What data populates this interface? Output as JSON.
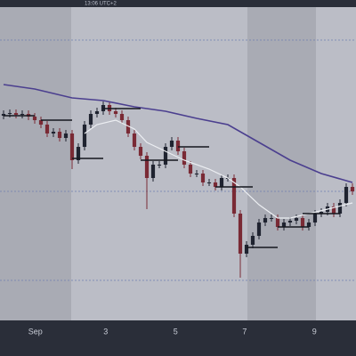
{
  "chart_data": {
    "type": "candlestick",
    "timestamp": "13:06 UTC+2",
    "xlim": [
      -0.571,
      56.571
    ],
    "ylim": [
      0,
      360
    ],
    "xticks": [
      {
        "value": 5.1,
        "label": "Sep"
      },
      {
        "value": 16.4,
        "label": "3"
      },
      {
        "value": 27.6,
        "label": "5"
      },
      {
        "value": 38.7,
        "label": "7"
      },
      {
        "value": 49.9,
        "label": "9"
      }
    ],
    "up_color": "#1f2330",
    "down_color": "#7a2a35",
    "candles": {
      "open": [
        230,
        232,
        233,
        231,
        232,
        229,
        225,
        220,
        210,
        212,
        205,
        210,
        180,
        195,
        220,
        232,
        235,
        242,
        235,
        232,
        225,
        210,
        195,
        185,
        160,
        175,
        175,
        195,
        202,
        190,
        175,
        165,
        165,
        155,
        155,
        150,
        160,
        160,
        120,
        75,
        85,
        95,
        110,
        115,
        115,
        105,
        110,
        112,
        115,
        105,
        110,
        120,
        122,
        128,
        120,
        132,
        150
      ],
      "high": [
        236,
        237,
        237,
        236,
        236,
        233,
        229,
        224,
        216,
        216,
        214,
        214,
        199,
        224,
        236,
        239,
        246,
        246,
        239,
        236,
        229,
        214,
        199,
        189,
        179,
        179,
        199,
        206,
        206,
        194,
        179,
        169,
        169,
        159,
        159,
        164,
        164,
        164,
        124,
        89,
        99,
        114,
        119,
        119,
        119,
        114,
        116,
        119,
        119,
        114,
        124,
        126,
        132,
        132,
        136,
        154,
        154
      ],
      "low": [
        226,
        228,
        227,
        227,
        225,
        221,
        216,
        206,
        206,
        201,
        201,
        170,
        176,
        191,
        216,
        228,
        231,
        231,
        228,
        221,
        206,
        191,
        181,
        125,
        156,
        171,
        171,
        191,
        186,
        171,
        161,
        161,
        151,
        151,
        146,
        146,
        156,
        116,
        48,
        71,
        81,
        91,
        106,
        111,
        101,
        101,
        106,
        108,
        101,
        101,
        106,
        116,
        118,
        116,
        116,
        128,
        141
      ],
      "close": [
        232,
        233,
        231,
        232,
        229,
        225,
        220,
        210,
        212,
        205,
        210,
        180,
        195,
        220,
        232,
        235,
        242,
        235,
        232,
        225,
        210,
        195,
        185,
        160,
        175,
        175,
        195,
        202,
        190,
        175,
        165,
        165,
        155,
        155,
        150,
        160,
        160,
        120,
        75,
        85,
        95,
        110,
        115,
        115,
        105,
        110,
        112,
        115,
        105,
        110,
        120,
        122,
        128,
        120,
        132,
        150,
        145
      ]
    },
    "lines": [
      {
        "color": "#4b3f8f",
        "x": [
          0,
          5,
          11,
          16,
          21,
          26,
          31,
          36,
          41,
          46,
          51,
          56
        ],
        "values": [
          265,
          260,
          250,
          247,
          240,
          235,
          227,
          220,
          200,
          180,
          165,
          155
        ]
      },
      {
        "color": "#eceef2",
        "x": [
          13,
          15,
          18,
          21,
          23,
          26,
          29,
          33,
          36,
          38,
          41,
          44,
          46,
          49,
          52,
          56
        ],
        "values": [
          210,
          220,
          225,
          215,
          200,
          190,
          180,
          170,
          160,
          150,
          130,
          115,
          115,
          120,
          125,
          132
        ]
      }
    ],
    "levels": [
      {
        "start": 0,
        "end": 5,
        "value": 230
      },
      {
        "start": 6,
        "end": 11,
        "value": 225
      },
      {
        "start": 11,
        "end": 16,
        "value": 182
      },
      {
        "start": 16,
        "end": 22,
        "value": 238
      },
      {
        "start": 22,
        "end": 28,
        "value": 180
      },
      {
        "start": 28,
        "end": 33,
        "value": 195
      },
      {
        "start": 34,
        "end": 40,
        "value": 150
      },
      {
        "start": 39,
        "end": 44,
        "value": 82
      },
      {
        "start": 44,
        "end": 49,
        "value": 105
      },
      {
        "start": 48,
        "end": 54,
        "value": 120
      }
    ],
    "hlines": [
      315,
      145,
      45
    ]
  }
}
